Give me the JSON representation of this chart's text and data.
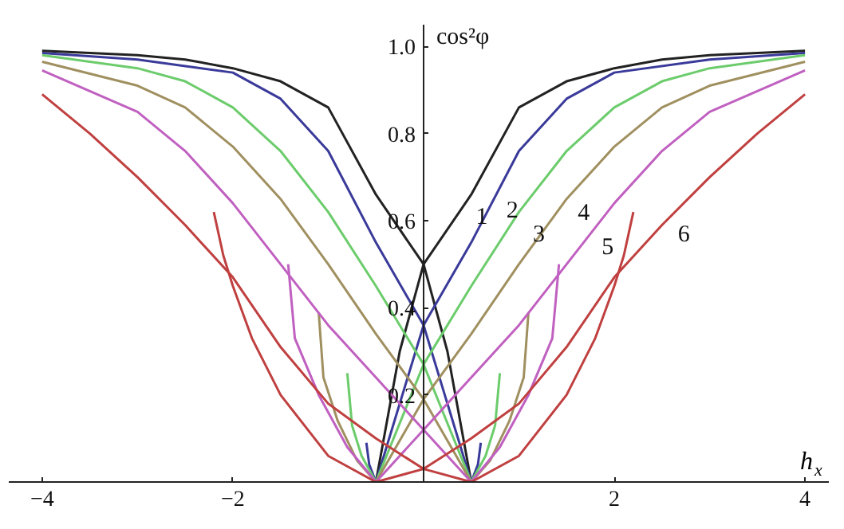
{
  "chart_data": {
    "type": "line",
    "xlabel": "h$_{x}$",
    "ylabel": "cos²φ",
    "xlim": [
      -4.35,
      4.25
    ],
    "ylim": [
      0,
      1.05
    ],
    "xticks": [
      {
        "value": -4,
        "label": "−4"
      },
      {
        "value": -2,
        "label": "−2"
      },
      2,
      4
    ],
    "yticks": [
      0.2,
      0.4,
      0.6,
      0.8,
      {
        "value": 1,
        "label": "1.0"
      }
    ],
    "grid": false,
    "marker": "none",
    "line_style": "solid",
    "series": [
      {
        "color": "#222222",
        "x": [
          -0.5,
          -0.25,
          0,
          0.5,
          1,
          1.5,
          2,
          2.5,
          3,
          4
        ],
        "values": [
          0,
          0.3,
          0.5,
          0.66,
          0.86,
          0.92,
          0.95,
          0.97,
          0.98,
          0.99
        ]
      },
      {
        "color": "#222222",
        "x": [
          0.5,
          0.25,
          0,
          -0.5,
          -1,
          -1.5,
          -2,
          -2.5,
          -3,
          -4
        ],
        "values": [
          0,
          0.3,
          0.5,
          0.66,
          0.86,
          0.92,
          0.95,
          0.97,
          0.98,
          0.99
        ]
      },
      {
        "color": "#3a3a9a",
        "x": [
          -0.5,
          -0.25,
          0,
          0.5,
          1,
          1.5,
          2,
          3,
          4
        ],
        "values": [
          0,
          0.18,
          0.36,
          0.55,
          0.76,
          0.88,
          0.94,
          0.97,
          0.985
        ]
      },
      {
        "color": "#3a3a9a",
        "x": [
          0.5,
          0.25,
          0,
          -0.5,
          -1,
          -1.5,
          -2,
          -3,
          -4
        ],
        "values": [
          0,
          0.18,
          0.36,
          0.55,
          0.76,
          0.88,
          0.94,
          0.97,
          0.985
        ]
      },
      {
        "color": "#3a3a9a",
        "x": [
          0.5,
          0.57,
          0.6
        ],
        "values": [
          0,
          0.04,
          0.09
        ]
      },
      {
        "color": "#3a3a9a",
        "x": [
          -0.5,
          -0.57,
          -0.6
        ],
        "values": [
          0,
          0.04,
          0.09
        ]
      },
      {
        "color": "#6ccc6c",
        "x": [
          -0.5,
          0,
          0.5,
          1,
          1.5,
          2,
          2.5,
          3,
          4
        ],
        "values": [
          0,
          0.27,
          0.45,
          0.62,
          0.76,
          0.86,
          0.92,
          0.95,
          0.98
        ]
      },
      {
        "color": "#6ccc6c",
        "x": [
          0.5,
          0,
          -0.5,
          -1,
          -1.5,
          -2,
          -2.5,
          -3,
          -4
        ],
        "values": [
          0,
          0.27,
          0.45,
          0.62,
          0.76,
          0.86,
          0.92,
          0.95,
          0.98
        ]
      },
      {
        "color": "#6ccc6c",
        "x": [
          0.5,
          0.65,
          0.75,
          0.8
        ],
        "values": [
          0,
          0.06,
          0.13,
          0.25
        ]
      },
      {
        "color": "#6ccc6c",
        "x": [
          -0.5,
          -0.65,
          -0.75,
          -0.8
        ],
        "values": [
          0,
          0.06,
          0.13,
          0.25
        ]
      },
      {
        "color": "#a09060",
        "x": [
          -0.5,
          0,
          0.5,
          1,
          1.5,
          2,
          2.5,
          3,
          4
        ],
        "values": [
          0,
          0.19,
          0.34,
          0.5,
          0.65,
          0.77,
          0.86,
          0.91,
          0.965
        ]
      },
      {
        "color": "#a09060",
        "x": [
          0.5,
          0,
          -0.5,
          -1,
          -1.5,
          -2,
          -2.5,
          -3,
          -4
        ],
        "values": [
          0,
          0.19,
          0.34,
          0.5,
          0.65,
          0.77,
          0.86,
          0.91,
          0.965
        ]
      },
      {
        "color": "#a09060",
        "x": [
          0.5,
          0.7,
          0.9,
          1.05,
          1.1
        ],
        "values": [
          0,
          0.05,
          0.14,
          0.24,
          0.39
        ]
      },
      {
        "color": "#a09060",
        "x": [
          -0.5,
          -0.7,
          -0.9,
          -1.05,
          -1.1
        ],
        "values": [
          0,
          0.05,
          0.14,
          0.24,
          0.39
        ]
      },
      {
        "color": "#c060c0",
        "x": [
          -0.5,
          0,
          0.5,
          1,
          1.5,
          2,
          2.5,
          3,
          4
        ],
        "values": [
          0,
          0.12,
          0.24,
          0.36,
          0.5,
          0.64,
          0.76,
          0.85,
          0.945
        ]
      },
      {
        "color": "#c060c0",
        "x": [
          0.5,
          0,
          -0.5,
          -1,
          -1.5,
          -2,
          -2.5,
          -3,
          -4
        ],
        "values": [
          0,
          0.12,
          0.24,
          0.36,
          0.5,
          0.64,
          0.76,
          0.85,
          0.945
        ]
      },
      {
        "color": "#c060c0",
        "x": [
          0.5,
          0.8,
          1.1,
          1.35,
          1.42
        ],
        "values": [
          0,
          0.08,
          0.2,
          0.33,
          0.5
        ]
      },
      {
        "color": "#c060c0",
        "x": [
          -0.5,
          -0.8,
          -1.1,
          -1.35,
          -1.42
        ],
        "values": [
          0,
          0.08,
          0.2,
          0.33,
          0.5
        ]
      },
      {
        "color": "#c04040",
        "x": [
          -0.5,
          0,
          0.5,
          1,
          1.5,
          2,
          2.5,
          3,
          3.5,
          4
        ],
        "values": [
          0,
          0.03,
          0.1,
          0.18,
          0.31,
          0.47,
          0.59,
          0.7,
          0.8,
          0.89
        ]
      },
      {
        "color": "#c04040",
        "x": [
          0.5,
          0,
          -0.5,
          -1,
          -1.5,
          -2,
          -2.5,
          -3,
          -3.5,
          -4
        ],
        "values": [
          0,
          0.03,
          0.1,
          0.18,
          0.31,
          0.47,
          0.59,
          0.7,
          0.8,
          0.89
        ]
      },
      {
        "color": "#c04040",
        "x": [
          0.5,
          1,
          1.5,
          1.8,
          2,
          2.1,
          2.2
        ],
        "values": [
          0,
          0.06,
          0.2,
          0.33,
          0.45,
          0.52,
          0.62
        ]
      },
      {
        "color": "#c04040",
        "x": [
          -0.5,
          -1,
          -1.5,
          -1.8,
          -2,
          -2.1,
          -2.2
        ],
        "values": [
          0,
          0.06,
          0.2,
          0.33,
          0.45,
          0.52,
          0.62
        ]
      }
    ],
    "annotations": [
      {
        "text": "1",
        "x": 0.43,
        "y": 0.64
      },
      {
        "text": "2",
        "x": 0.75,
        "y": 0.655
      },
      {
        "text": "3",
        "x": 1.03,
        "y": 0.6
      },
      {
        "text": "4",
        "x": 1.5,
        "y": 0.65
      },
      {
        "text": "5",
        "x": 1.75,
        "y": 0.57
      },
      {
        "text": "6",
        "x": 2.55,
        "y": 0.6
      }
    ]
  }
}
